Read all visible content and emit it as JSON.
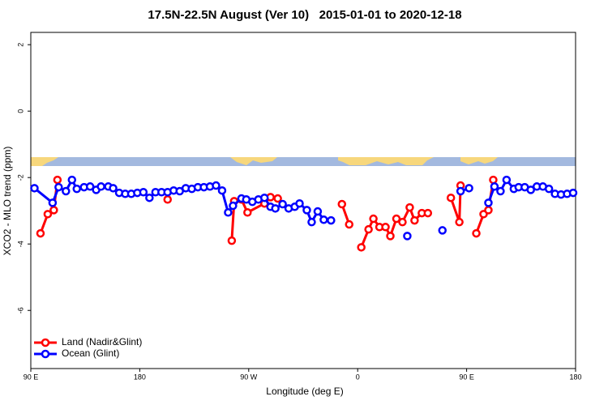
{
  "chart_data": {
    "type": "line",
    "title": "17.5N-22.5N August (Ver 10)   2015-01-01 to 2020-12-18",
    "x_label": "Longitude (deg E)",
    "y_label": "XCO2 - MLO trend (ppm)",
    "xlim": [
      90,
      540
    ],
    "ylim": [
      -7.75,
      2.37
    ],
    "xticks": [
      {
        "value": 90,
        "label": "90 E"
      },
      180,
      {
        "value": 270,
        "label": "90 W"
      },
      {
        "value": 360,
        "label": "0"
      },
      {
        "value": 450,
        "label": "90 E"
      },
      {
        "value": 540,
        "label": "180"
      }
    ],
    "yticks": [
      -6,
      -4,
      -2,
      0,
      2
    ],
    "legend": "bottom-left",
    "series": [
      {
        "name": "Land (Nadir&Glint)",
        "color": "#ff0000",
        "x": [
          98,
          104,
          109,
          112,
          null,
          203,
          null,
          256,
          258,
          264,
          269,
          283,
          288,
          294,
          null,
          347,
          353,
          null,
          363,
          369,
          373,
          378,
          383,
          387,
          392,
          397,
          403,
          407,
          413,
          418,
          null,
          437,
          444,
          445,
          null,
          458,
          464,
          468,
          472
        ],
        "values": [
          -3.68,
          -3.1,
          -2.98,
          -2.07,
          null,
          -2.66,
          null,
          -3.9,
          -2.71,
          -2.66,
          -3.05,
          -2.78,
          -2.59,
          -2.63,
          null,
          -2.8,
          -3.41,
          null,
          -4.1,
          -3.56,
          -3.24,
          -3.49,
          -3.49,
          -3.76,
          -3.24,
          -3.34,
          -2.9,
          -3.29,
          -3.07,
          -3.07,
          null,
          -2.61,
          -3.34,
          -2.24,
          null,
          -3.68,
          -3.1,
          -2.98,
          -2.07
        ]
      },
      {
        "name": "Ocean (Glint)",
        "color": "#0000ff",
        "x": [
          93,
          108,
          113,
          119,
          124,
          128,
          134,
          139,
          144,
          148,
          154,
          158,
          163,
          168,
          173,
          178,
          183,
          188,
          193,
          198,
          203,
          208,
          213,
          218,
          223,
          228,
          233,
          238,
          243,
          248,
          253,
          257,
          264,
          268,
          273,
          278,
          283,
          288,
          292,
          298,
          303,
          308,
          312,
          318,
          322,
          327,
          332,
          338,
          null,
          401,
          null,
          430,
          null,
          445,
          452,
          null,
          468,
          473,
          478,
          483,
          489,
          493,
          498,
          503,
          508,
          513,
          518,
          523,
          528,
          533,
          538
        ],
        "values": [
          -2.32,
          -2.76,
          -2.29,
          -2.41,
          -2.07,
          -2.34,
          -2.29,
          -2.27,
          -2.37,
          -2.27,
          -2.27,
          -2.32,
          -2.46,
          -2.49,
          -2.49,
          -2.46,
          -2.44,
          -2.61,
          -2.44,
          -2.44,
          -2.44,
          -2.39,
          -2.41,
          -2.32,
          -2.34,
          -2.29,
          -2.29,
          -2.27,
          -2.24,
          -2.39,
          -3.05,
          -2.85,
          -2.63,
          -2.66,
          -2.73,
          -2.66,
          -2.61,
          -2.88,
          -2.93,
          -2.8,
          -2.93,
          -2.88,
          -2.78,
          -2.98,
          -3.34,
          -3.02,
          -3.27,
          -3.29,
          null,
          -3.76,
          null,
          -3.59,
          null,
          -2.41,
          -2.32,
          null,
          -2.76,
          -2.27,
          -2.41,
          -2.07,
          -2.34,
          -2.29,
          -2.29,
          -2.37,
          -2.27,
          -2.27,
          -2.34,
          -2.49,
          -2.51,
          -2.49,
          -2.46
        ]
      }
    ]
  }
}
